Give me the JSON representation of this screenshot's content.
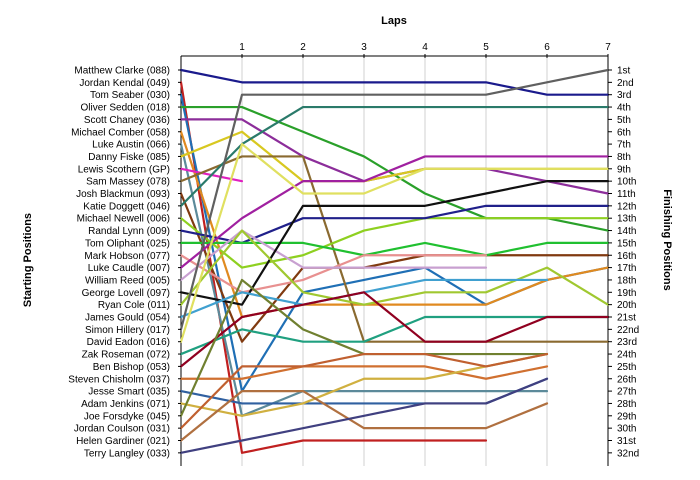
{
  "chart_data": {
    "type": "line",
    "xlabel": "Laps",
    "ylabel_left": "Starting Positions",
    "ylabel_right": "Finishing Positions",
    "x_ticks": [
      "1",
      "2",
      "3",
      "4",
      "5",
      "6",
      "7"
    ],
    "finishing_position_labels": [
      "1st",
      "2nd",
      "3rd",
      "4th",
      "5th",
      "6th",
      "7th",
      "8th",
      "9th",
      "10th",
      "11th",
      "12th",
      "13th",
      "14th",
      "15th",
      "16th",
      "17th",
      "18th",
      "19th",
      "20th",
      "21st",
      "22nd",
      "23rd",
      "24th",
      "25th",
      "26th",
      "27th",
      "28th",
      "29th",
      "30th",
      "31st",
      "32nd"
    ],
    "y_axis": "position (1 = top)",
    "series": [
      {
        "name": "Matthew Clarke (088)",
        "color": "#1a1a8c",
        "positions": [
          1,
          2,
          2,
          2,
          2,
          2,
          3,
          3
        ]
      },
      {
        "name": "Jordan Kendal (049)",
        "color": "#c02020",
        "positions": [
          2,
          32,
          31,
          31,
          31,
          31
        ]
      },
      {
        "name": "Tom Seaber (030)",
        "color": "#1f6fb5",
        "positions": [
          3,
          27,
          19,
          18,
          17,
          20,
          18,
          17
        ]
      },
      {
        "name": "Oliver Sedden (018)",
        "color": "#2aa02a",
        "positions": [
          4,
          4,
          6,
          8,
          11,
          13,
          13,
          14
        ]
      },
      {
        "name": "Scott Chaney (036)",
        "color": "#8c2d9a",
        "positions": [
          5,
          5,
          8,
          10,
          9,
          9,
          10,
          11
        ]
      },
      {
        "name": "Michael Comber (058)",
        "color": "#e08a20",
        "positions": [
          6,
          21,
          20,
          20,
          20,
          20,
          18,
          17
        ]
      },
      {
        "name": "Luke Austin (066)",
        "color": "#5c8a9a",
        "positions": [
          7,
          29,
          27,
          27,
          27,
          27,
          27
        ]
      },
      {
        "name": "Danny Fiske (085)",
        "color": "#d8c820",
        "positions": [
          8,
          6,
          10,
          10,
          9,
          9,
          9,
          9
        ]
      },
      {
        "name": "Lewis Scothern (GP)",
        "color": "#e020c0",
        "positions": [
          9,
          10
        ]
      },
      {
        "name": "Sam Massey (078)",
        "color": "#8a6a30",
        "positions": [
          10,
          8,
          8,
          23,
          23,
          23,
          23,
          23
        ]
      },
      {
        "name": "Josh Blackmun (093)",
        "color": "#803a10",
        "positions": [
          11,
          23,
          17,
          17,
          16,
          16,
          16,
          16
        ]
      },
      {
        "name": "Katie Doggett (046)",
        "color": "#2a7a6a",
        "positions": [
          12,
          7,
          4,
          4,
          4,
          4,
          4,
          4
        ]
      },
      {
        "name": "Michael Newell (006)",
        "color": "#8ed020",
        "positions": [
          13,
          17,
          16,
          14,
          13,
          13,
          13,
          13
        ]
      },
      {
        "name": "Randal Lynn (009)",
        "color": "#20208a",
        "positions": [
          14,
          15,
          13,
          13,
          13,
          12,
          12,
          12
        ]
      },
      {
        "name": "Tom Oliphant (025)",
        "color": "#20c030",
        "positions": [
          15,
          15,
          15,
          16,
          15,
          16,
          15,
          15
        ]
      },
      {
        "name": "Mark Hobson (077)",
        "color": "#e89090",
        "positions": [
          16,
          19,
          18,
          16,
          16,
          16
        ]
      },
      {
        "name": "Luke Caudle (007)",
        "color": "#a020a0",
        "positions": [
          17,
          13,
          10,
          10,
          8,
          8,
          8,
          8
        ]
      },
      {
        "name": "William Reed (005)",
        "color": "#c8a0d0",
        "positions": [
          18,
          14,
          17,
          17,
          17,
          17
        ]
      },
      {
        "name": "George Lovell (097)",
        "color": "#101010",
        "positions": [
          19,
          20,
          12,
          12,
          12,
          11,
          10,
          10
        ]
      },
      {
        "name": "Ryan Cole (011)",
        "color": "#a0c830",
        "positions": [
          20,
          14,
          19,
          20,
          19,
          19,
          17,
          20
        ]
      },
      {
        "name": "James Gould (054)",
        "color": "#40a0d0",
        "positions": [
          21,
          19,
          20,
          19,
          18,
          18,
          18
        ]
      },
      {
        "name": "Simon Hillery (017)",
        "color": "#606060",
        "positions": [
          22,
          3,
          3,
          3,
          3,
          3,
          2,
          1
        ]
      },
      {
        "name": "David Eadon (016)",
        "color": "#e0e060",
        "positions": [
          23,
          7,
          11,
          11,
          9,
          9,
          9,
          9
        ]
      },
      {
        "name": "Zak Roseman (072)",
        "color": "#20a080",
        "positions": [
          24,
          22,
          23,
          23,
          21,
          21,
          21,
          21
        ]
      },
      {
        "name": "Ben Bishop (053)",
        "color": "#900020",
        "positions": [
          25,
          21,
          20,
          19,
          23,
          23,
          21,
          21
        ]
      },
      {
        "name": "Steven Chisholm (037)",
        "color": "#d07030",
        "positions": [
          26,
          26,
          25,
          25,
          25,
          26,
          25
        ]
      },
      {
        "name": "Jesse Smart (035)",
        "color": "#3060a0",
        "positions": [
          27,
          28,
          28,
          28,
          28,
          28,
          26
        ]
      },
      {
        "name": "Adam Jenkins (071)",
        "color": "#d0b040",
        "positions": [
          28,
          29,
          28,
          26,
          26,
          25,
          24
        ]
      },
      {
        "name": "Joe Forsdyke (045)",
        "color": "#708030",
        "positions": [
          29,
          18,
          22,
          24,
          24,
          24,
          24
        ]
      },
      {
        "name": "Jordan Coulson (031)",
        "color": "#c06030",
        "positions": [
          30,
          25,
          25,
          24,
          24,
          25,
          24
        ]
      },
      {
        "name": "Helen Gardiner (021)",
        "color": "#b07040",
        "positions": [
          31,
          27,
          27,
          30,
          30,
          30,
          28
        ]
      },
      {
        "name": "Terry Langley (033)",
        "color": "#404080",
        "positions": [
          32,
          31,
          30,
          29,
          28,
          28,
          26
        ]
      }
    ]
  }
}
